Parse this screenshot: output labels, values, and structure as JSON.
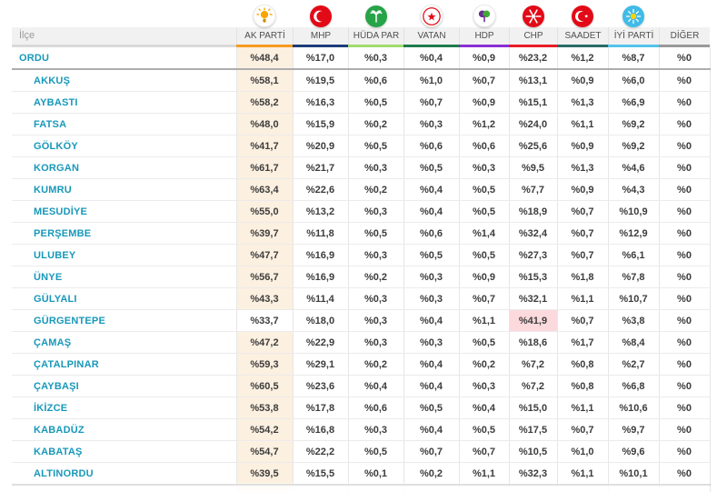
{
  "table": {
    "ilce_header": "İlçe",
    "parties": [
      {
        "name": "AK PARTİ",
        "icon": "bulb-icon",
        "underline_color": "#f59b22"
      },
      {
        "name": "MHP",
        "icon": "crescent-icon",
        "underline_color": "#1d3d7b"
      },
      {
        "name": "HÜDA PAR",
        "icon": "palm-icon",
        "underline_color": "#9fdb6e"
      },
      {
        "name": "VATAN",
        "icon": "star-icon",
        "underline_color": "#1f7a4d"
      },
      {
        "name": "HDP",
        "icon": "tree-icon",
        "underline_color": "#8a2fd4"
      },
      {
        "name": "CHP",
        "icon": "six-arrows-icon",
        "underline_color": "#e81c24"
      },
      {
        "name": "SAADET",
        "icon": "crescent-star-icon",
        "underline_color": "#2a6b66"
      },
      {
        "name": "İYİ PARTİ",
        "icon": "sun-icon",
        "underline_color": "#52c3ea"
      },
      {
        "name": "DİĞER",
        "icon": "none",
        "underline_color": "#999999"
      }
    ],
    "highlight_colors": {
      "default": "#fcf0e0",
      "chp": "#fbd9dc"
    },
    "rows": [
      {
        "district": "ORDU",
        "level": "province",
        "winner_col": 0,
        "values": [
          "%48,4",
          "%17,0",
          "%0,3",
          "%0,4",
          "%0,9",
          "%23,2",
          "%1,2",
          "%8,7",
          "%0"
        ]
      },
      {
        "district": "AKKUŞ",
        "level": "district",
        "winner_col": 0,
        "values": [
          "%58,1",
          "%19,5",
          "%0,6",
          "%1,0",
          "%0,7",
          "%13,1",
          "%0,9",
          "%6,0",
          "%0"
        ]
      },
      {
        "district": "AYBASTI",
        "level": "district",
        "winner_col": 0,
        "values": [
          "%58,2",
          "%16,3",
          "%0,5",
          "%0,7",
          "%0,9",
          "%15,1",
          "%1,3",
          "%6,9",
          "%0"
        ]
      },
      {
        "district": "FATSA",
        "level": "district",
        "winner_col": 0,
        "values": [
          "%48,0",
          "%15,9",
          "%0,2",
          "%0,3",
          "%1,2",
          "%24,0",
          "%1,1",
          "%9,2",
          "%0"
        ]
      },
      {
        "district": "GÖLKÖY",
        "level": "district",
        "winner_col": 0,
        "values": [
          "%41,7",
          "%20,9",
          "%0,5",
          "%0,6",
          "%0,6",
          "%25,6",
          "%0,9",
          "%9,2",
          "%0"
        ]
      },
      {
        "district": "KORGAN",
        "level": "district",
        "winner_col": 0,
        "values": [
          "%61,7",
          "%21,7",
          "%0,3",
          "%0,5",
          "%0,3",
          "%9,5",
          "%1,3",
          "%4,6",
          "%0"
        ]
      },
      {
        "district": "KUMRU",
        "level": "district",
        "winner_col": 0,
        "values": [
          "%63,4",
          "%22,6",
          "%0,2",
          "%0,4",
          "%0,5",
          "%7,7",
          "%0,9",
          "%4,3",
          "%0"
        ]
      },
      {
        "district": "MESUDİYE",
        "level": "district",
        "winner_col": 0,
        "values": [
          "%55,0",
          "%13,2",
          "%0,3",
          "%0,4",
          "%0,5",
          "%18,9",
          "%0,7",
          "%10,9",
          "%0"
        ]
      },
      {
        "district": "PERŞEMBE",
        "level": "district",
        "winner_col": 0,
        "values": [
          "%39,7",
          "%11,8",
          "%0,5",
          "%0,6",
          "%1,4",
          "%32,4",
          "%0,7",
          "%12,9",
          "%0"
        ]
      },
      {
        "district": "ULUBEY",
        "level": "district",
        "winner_col": 0,
        "values": [
          "%47,7",
          "%16,9",
          "%0,3",
          "%0,5",
          "%0,5",
          "%27,3",
          "%0,7",
          "%6,1",
          "%0"
        ]
      },
      {
        "district": "ÜNYE",
        "level": "district",
        "winner_col": 0,
        "values": [
          "%56,7",
          "%16,9",
          "%0,2",
          "%0,3",
          "%0,9",
          "%15,3",
          "%1,8",
          "%7,8",
          "%0"
        ]
      },
      {
        "district": "GÜLYALI",
        "level": "district",
        "winner_col": 0,
        "values": [
          "%43,3",
          "%11,4",
          "%0,3",
          "%0,3",
          "%0,7",
          "%32,1",
          "%1,1",
          "%10,7",
          "%0"
        ]
      },
      {
        "district": "GÜRGENTEPE",
        "level": "district",
        "winner_col": 5,
        "values": [
          "%33,7",
          "%18,0",
          "%0,3",
          "%0,4",
          "%1,1",
          "%41,9",
          "%0,7",
          "%3,8",
          "%0"
        ]
      },
      {
        "district": "ÇAMAŞ",
        "level": "district",
        "winner_col": 0,
        "values": [
          "%47,2",
          "%22,9",
          "%0,3",
          "%0,3",
          "%0,5",
          "%18,6",
          "%1,7",
          "%8,4",
          "%0"
        ]
      },
      {
        "district": "ÇATALPINAR",
        "level": "district",
        "winner_col": 0,
        "values": [
          "%59,3",
          "%29,1",
          "%0,2",
          "%0,4",
          "%0,2",
          "%7,2",
          "%0,8",
          "%2,7",
          "%0"
        ]
      },
      {
        "district": "ÇAYBAŞI",
        "level": "district",
        "winner_col": 0,
        "values": [
          "%60,5",
          "%23,6",
          "%0,4",
          "%0,4",
          "%0,3",
          "%7,2",
          "%0,8",
          "%6,8",
          "%0"
        ]
      },
      {
        "district": "İKİZCE",
        "level": "district",
        "winner_col": 0,
        "values": [
          "%53,8",
          "%17,8",
          "%0,6",
          "%0,5",
          "%0,4",
          "%15,0",
          "%1,1",
          "%10,6",
          "%0"
        ]
      },
      {
        "district": "KABADÜZ",
        "level": "district",
        "winner_col": 0,
        "values": [
          "%54,2",
          "%16,8",
          "%0,3",
          "%0,4",
          "%0,5",
          "%17,5",
          "%0,7",
          "%9,7",
          "%0"
        ]
      },
      {
        "district": "KABATAŞ",
        "level": "district",
        "winner_col": 0,
        "values": [
          "%54,7",
          "%22,2",
          "%0,5",
          "%0,7",
          "%0,7",
          "%10,5",
          "%1,0",
          "%9,6",
          "%0"
        ]
      },
      {
        "district": "ALTINORDU",
        "level": "district",
        "winner_col": 0,
        "values": [
          "%39,5",
          "%15,5",
          "%0,1",
          "%0,2",
          "%1,1",
          "%32,3",
          "%1,1",
          "%10,1",
          "%0"
        ]
      }
    ]
  }
}
